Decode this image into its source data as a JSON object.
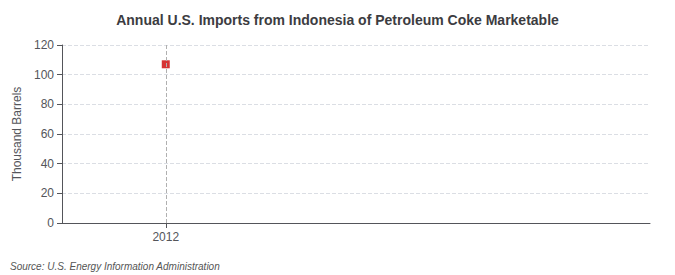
{
  "chart_data": {
    "type": "scatter",
    "title": "Annual U.S. Imports from Indonesia of Petroleum Coke Marketable",
    "y_label": "Thousand Barrels",
    "source": "Source: U.S. Energy Information Administration",
    "x": [
      2012
    ],
    "values": [
      107
    ],
    "color": "#cc0000",
    "marker": "square",
    "xlim": [
      2011.4,
      2014.8
    ],
    "xticks": [
      2012
    ],
    "ylim": [
      0,
      120
    ],
    "yticks": [
      0,
      20,
      40,
      60,
      80,
      100,
      120
    ],
    "grid": true
  }
}
